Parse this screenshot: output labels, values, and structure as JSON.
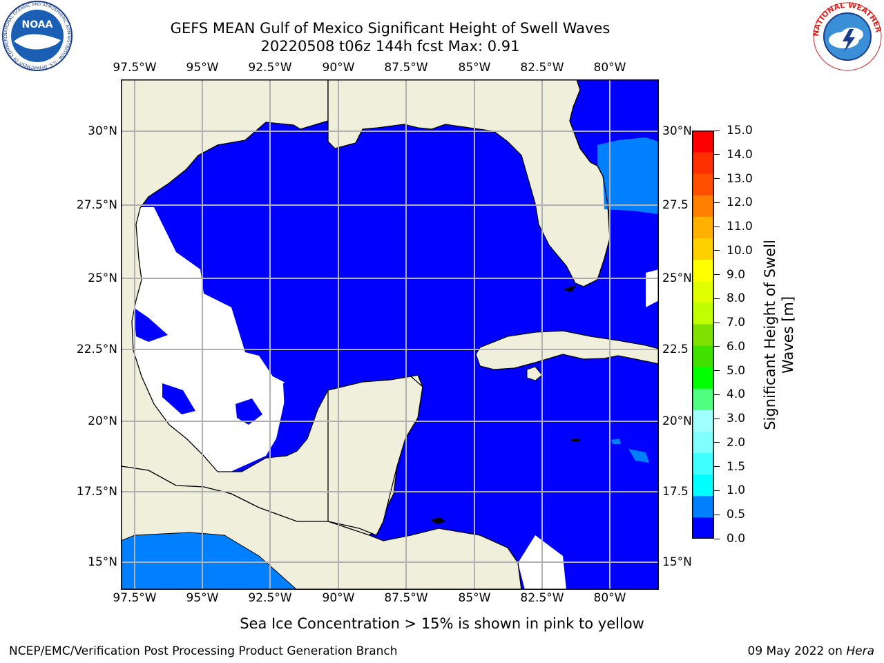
{
  "title": {
    "line1": "GEFS MEAN Gulf of Mexico Significant Height of Swell Waves",
    "line2": "20220508 t06z 144h fcst   Max: 0.91"
  },
  "map": {
    "lon_ticks": [
      "97.5°W",
      "95°W",
      "92.5°W",
      "90°W",
      "87.5°W",
      "85°W",
      "82.5°W",
      "80°W"
    ],
    "lat_ticks_left": [
      "30°N",
      "27.5°N",
      "25°N",
      "22.5°N",
      "20°N",
      "17.5°N",
      "15°N"
    ],
    "lat_ticks_right": [
      "30°N",
      "27.5",
      "25°N",
      "22.5",
      "20°N",
      "17.5",
      "15°N"
    ],
    "colors": {
      "land": "#efefdc",
      "sea_low": "#0000ff",
      "sea_mid": "#0080ff",
      "no_data": "#ffffff",
      "grid": "#b0b0b0"
    }
  },
  "colorbar": {
    "label_line1": "Significant Height of Swell",
    "label_line2": "Waves [m]",
    "levels": [
      "0.0",
      "0.5",
      "1.0",
      "1.5",
      "2.0",
      "3.0",
      "4.0",
      "5.0",
      "6.0",
      "7.0",
      "8.0",
      "9.0",
      "10.0",
      "11.0",
      "12.0",
      "13.0",
      "14.0",
      "15.0"
    ],
    "colors": [
      "#0000ff",
      "#0080ff",
      "#00ffff",
      "#40ffff",
      "#80ffff",
      "#a0ffff",
      "#50ff80",
      "#00ff00",
      "#40e000",
      "#80e000",
      "#c0ff00",
      "#e0ff00",
      "#ffff00",
      "#ffd000",
      "#ffb000",
      "#ff8000",
      "#ff5000",
      "#ff3000",
      "#ff0000"
    ]
  },
  "note": "Sea Ice Concentration > 15% is shown in pink to yellow",
  "footer": {
    "left": "NCEP/EMC/Verification Post Processing Product Generation Branch",
    "right_prefix": "09 May 2022 on ",
    "right_host": "Hera"
  },
  "logos": {
    "noaa": "NOAA",
    "noaa_ring": "NATIONAL OCEANIC AND ATMOSPHERIC ADMINISTRATION · U.S. DEPARTMENT OF COMMERCE",
    "nws_ring": "NATIONAL WEATHER SERVICE"
  }
}
